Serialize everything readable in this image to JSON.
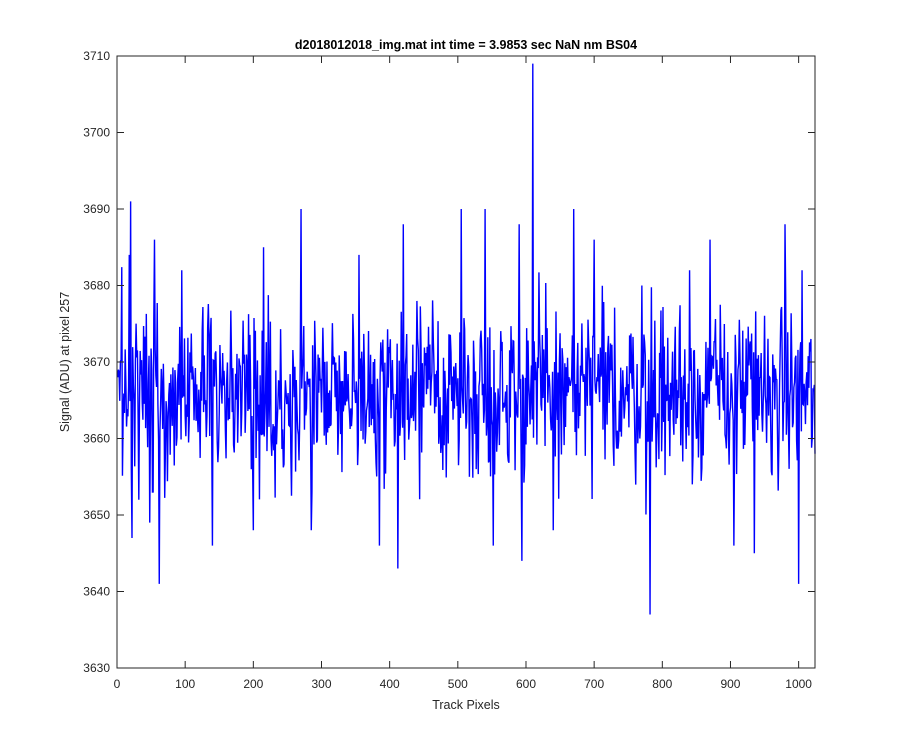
{
  "chart_data": {
    "type": "line",
    "title": "d2018012018_img.mat int time = 3.9853 sec  NaN nm BS04",
    "xlabel": "Track Pixels",
    "ylabel": "Signal (ADU) at pixel 257",
    "xlim": [
      0,
      1024
    ],
    "ylim": [
      3630,
      3710
    ],
    "xticks": [
      0,
      100,
      200,
      300,
      400,
      500,
      600,
      700,
      800,
      900,
      1000
    ],
    "yticks": [
      3630,
      3640,
      3650,
      3660,
      3670,
      3680,
      3690,
      3700,
      3710
    ],
    "grid": false,
    "legend": "none",
    "series": [
      {
        "color": "#0000ff",
        "baseline_mean": 3666,
        "noise_amplitude": 7,
        "n_points": 1024,
        "notable_points": [
          {
            "x": 1,
            "y": 3668
          },
          {
            "x": 18,
            "y": 3684
          },
          {
            "x": 20,
            "y": 3691
          },
          {
            "x": 22,
            "y": 3647
          },
          {
            "x": 32,
            "y": 3652
          },
          {
            "x": 48,
            "y": 3649
          },
          {
            "x": 55,
            "y": 3686
          },
          {
            "x": 62,
            "y": 3641
          },
          {
            "x": 95,
            "y": 3682
          },
          {
            "x": 140,
            "y": 3646
          },
          {
            "x": 200,
            "y": 3648
          },
          {
            "x": 215,
            "y": 3685
          },
          {
            "x": 270,
            "y": 3690
          },
          {
            "x": 285,
            "y": 3648
          },
          {
            "x": 355,
            "y": 3684
          },
          {
            "x": 385,
            "y": 3646
          },
          {
            "x": 412,
            "y": 3643
          },
          {
            "x": 420,
            "y": 3688
          },
          {
            "x": 505,
            "y": 3690
          },
          {
            "x": 540,
            "y": 3690
          },
          {
            "x": 552,
            "y": 3646
          },
          {
            "x": 590,
            "y": 3688
          },
          {
            "x": 594,
            "y": 3644
          },
          {
            "x": 610,
            "y": 3709
          },
          {
            "x": 640,
            "y": 3648
          },
          {
            "x": 670,
            "y": 3690
          },
          {
            "x": 700,
            "y": 3686
          },
          {
            "x": 770,
            "y": 3680
          },
          {
            "x": 782,
            "y": 3637
          },
          {
            "x": 840,
            "y": 3682
          },
          {
            "x": 870,
            "y": 3686
          },
          {
            "x": 905,
            "y": 3646
          },
          {
            "x": 935,
            "y": 3645
          },
          {
            "x": 980,
            "y": 3688
          },
          {
            "x": 1000,
            "y": 3641
          },
          {
            "x": 1005,
            "y": 3682
          },
          {
            "x": 1024,
            "y": 3658
          }
        ]
      }
    ]
  }
}
